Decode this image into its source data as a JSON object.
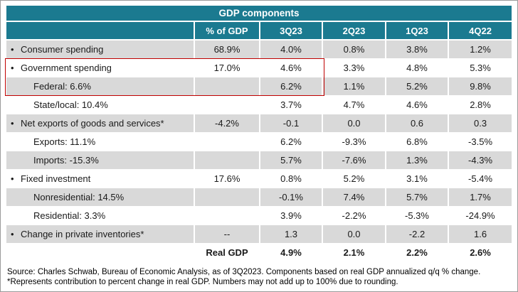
{
  "chart_data": {
    "type": "table",
    "title": "GDP components",
    "bullet_glyph": "•",
    "columns": [
      "",
      "% of GDP",
      "3Q23",
      "2Q23",
      "1Q23",
      "4Q22"
    ],
    "rows": [
      {
        "label": "Consumer spending",
        "bullet": true,
        "indent": false,
        "bold": false,
        "pct_gdp": "68.9%",
        "values": [
          "4.0%",
          "0.8%",
          "3.8%",
          "1.2%"
        ]
      },
      {
        "label": "Government spending",
        "bullet": true,
        "indent": false,
        "bold": false,
        "pct_gdp": "17.0%",
        "values": [
          "4.6%",
          "3.3%",
          "4.8%",
          "5.3%"
        ]
      },
      {
        "label": "Federal: 6.6%",
        "bullet": false,
        "indent": true,
        "bold": false,
        "pct_gdp": "",
        "values": [
          "6.2%",
          "1.1%",
          "5.2%",
          "9.8%"
        ]
      },
      {
        "label": "State/local: 10.4%",
        "bullet": false,
        "indent": true,
        "bold": false,
        "pct_gdp": "",
        "values": [
          "3.7%",
          "4.7%",
          "4.6%",
          "2.8%"
        ]
      },
      {
        "label": "Net exports of goods and services*",
        "bullet": true,
        "indent": false,
        "bold": false,
        "pct_gdp": "-4.2%",
        "values": [
          "-0.1",
          "0.0",
          "0.6",
          "0.3"
        ]
      },
      {
        "label": "Exports: 11.1%",
        "bullet": false,
        "indent": true,
        "bold": false,
        "pct_gdp": "",
        "values": [
          "6.2%",
          "-9.3%",
          "6.8%",
          "-3.5%"
        ]
      },
      {
        "label": "Imports: -15.3%",
        "bullet": false,
        "indent": true,
        "bold": false,
        "pct_gdp": "",
        "values": [
          "5.7%",
          "-7.6%",
          "1.3%",
          "-4.3%"
        ]
      },
      {
        "label": "Fixed investment",
        "bullet": true,
        "indent": false,
        "bold": false,
        "pct_gdp": "17.6%",
        "values": [
          "0.8%",
          "5.2%",
          "3.1%",
          "-5.4%"
        ]
      },
      {
        "label": "Nonresidential: 14.5%",
        "bullet": false,
        "indent": true,
        "bold": false,
        "pct_gdp": "",
        "values": [
          "-0.1%",
          "7.4%",
          "5.7%",
          "1.7%"
        ]
      },
      {
        "label": "Residential: 3.3%",
        "bullet": false,
        "indent": true,
        "bold": false,
        "pct_gdp": "",
        "values": [
          "3.9%",
          "-2.2%",
          "-5.3%",
          "-24.9%"
        ]
      },
      {
        "label": "Change in private inventories*",
        "bullet": true,
        "indent": false,
        "bold": false,
        "pct_gdp": "--",
        "values": [
          "1.3",
          "0.0",
          "-2.2",
          "1.6"
        ]
      },
      {
        "label": "",
        "bullet": false,
        "indent": false,
        "bold": true,
        "pct_gdp": "Real GDP",
        "values": [
          "4.9%",
          "2.1%",
          "2.2%",
          "2.6%"
        ]
      }
    ]
  },
  "footnotes": {
    "line1": "Source: Charles Schwab, Bureau of Economic Analysis, as of 3Q2023. Components based on real GDP annualized q/q % change.",
    "line2": "*Represents contribution to percent change in real GDP. Numbers may not add up to 100% due to rounding."
  },
  "colors": {
    "header_bg": "#1b7a90",
    "alt_row_bg": "#d9d9d9",
    "highlight_border": "#c00000",
    "header_text": "#ffffff",
    "body_text": "#1a1a1a"
  }
}
